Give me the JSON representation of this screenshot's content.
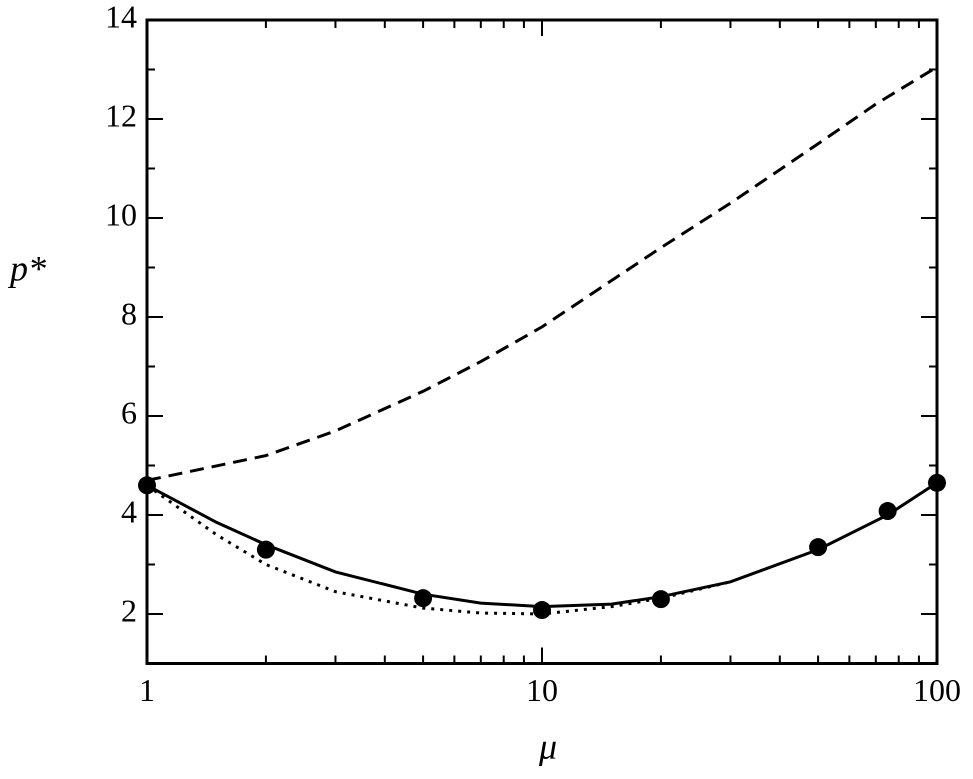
{
  "chart_data": {
    "type": "line",
    "xlabel": "μ",
    "ylabel": "p*",
    "xscale": "log",
    "xlim": [
      1,
      100
    ],
    "xticks": [
      1,
      10,
      100
    ],
    "xticks_minor": [
      2,
      3,
      4,
      5,
      6,
      7,
      8,
      9,
      20,
      30,
      40,
      50,
      60,
      70,
      80,
      90
    ],
    "ylim": [
      1,
      14
    ],
    "yticks": [
      2,
      4,
      6,
      8,
      10,
      12,
      14
    ],
    "yticks_minor": [
      3,
      5,
      7,
      9,
      11,
      13
    ],
    "series": [
      {
        "style": "dashed",
        "color": "#000000",
        "x": [
          1,
          2,
          3,
          5,
          7,
          10,
          20,
          30,
          50,
          70,
          100
        ],
        "values": [
          4.7,
          5.2,
          5.7,
          6.5,
          7.1,
          7.8,
          9.4,
          10.3,
          11.5,
          12.3,
          13.05
        ]
      },
      {
        "style": "dotted",
        "color": "#000000",
        "x": [
          1,
          1.5,
          2,
          3,
          5,
          7,
          10,
          15,
          20,
          30
        ],
        "values": [
          4.6,
          3.6,
          3.0,
          2.45,
          2.12,
          2.02,
          2.0,
          2.15,
          2.32,
          2.65
        ]
      },
      {
        "style": "solid",
        "color": "#000000",
        "x": [
          1,
          1.5,
          2,
          3,
          5,
          7,
          10,
          15,
          20,
          30,
          50,
          75,
          100
        ],
        "values": [
          4.6,
          3.85,
          3.4,
          2.85,
          2.4,
          2.22,
          2.15,
          2.2,
          2.35,
          2.65,
          3.3,
          4.0,
          4.65
        ]
      },
      {
        "style": "markers",
        "color": "#000000",
        "x": [
          1,
          2,
          5,
          10,
          20,
          50,
          75,
          100
        ],
        "values": [
          4.6,
          3.3,
          2.32,
          2.08,
          2.3,
          3.35,
          4.08,
          4.65
        ]
      }
    ]
  }
}
